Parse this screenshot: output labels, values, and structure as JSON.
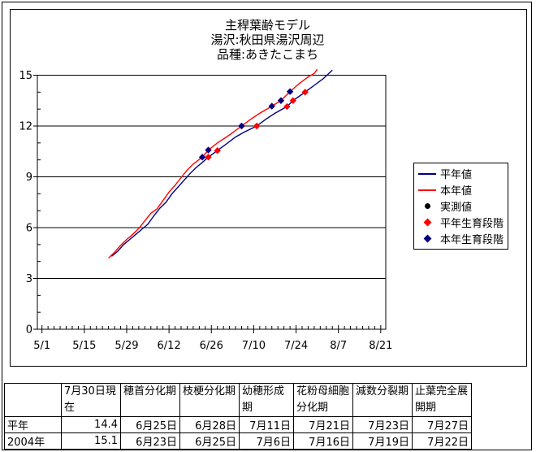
{
  "title": {
    "line1": "主稈葉齢モデル",
    "line2": "湯沢:秋田県湯沢周辺",
    "line3": "品種:あきたこまち"
  },
  "legend": {
    "items": [
      {
        "label": "平年値",
        "type": "line",
        "color": "#000080"
      },
      {
        "label": "本年値",
        "type": "line",
        "color": "#ff0000"
      },
      {
        "label": "実測値",
        "type": "circle",
        "color": "#000000"
      },
      {
        "label": "平年生育段階",
        "type": "diamond",
        "color": "#ff0000"
      },
      {
        "label": "本年生育段階",
        "type": "diamond",
        "color": "#000080"
      }
    ]
  },
  "chart_data": {
    "type": "line",
    "title": "主稈葉齢モデル 湯沢:秋田県湯沢周辺 品種:あきたこまち",
    "xlabel": "",
    "ylabel": "",
    "ylim": [
      0,
      15
    ],
    "y_major_ticks": [
      0,
      3,
      6,
      9,
      12,
      15
    ],
    "y_minor_step": 1,
    "x_tick_labels": [
      "5/1",
      "5/15",
      "5/29",
      "6/12",
      "6/26",
      "7/10",
      "7/24",
      "8/7",
      "8/21"
    ],
    "x_major_step_days": 14,
    "x_minor_step_days": 2,
    "grid": "horizontal-major",
    "legend_position": "right",
    "series": [
      {
        "name": "平年値",
        "color": "#000080",
        "points": [
          [
            "5/24",
            4.3
          ],
          [
            "5/26",
            4.6
          ],
          [
            "5/28",
            5.0
          ],
          [
            "5/30",
            5.3
          ],
          [
            "6/1",
            5.6
          ],
          [
            "6/3",
            5.9
          ],
          [
            "6/5",
            6.2
          ],
          [
            "6/7",
            6.7
          ],
          [
            "6/9",
            7.15
          ],
          [
            "6/11",
            7.5
          ],
          [
            "6/13",
            8.0
          ],
          [
            "6/15",
            8.4
          ],
          [
            "6/17",
            8.8
          ],
          [
            "6/19",
            9.2
          ],
          [
            "6/21",
            9.55
          ],
          [
            "6/23",
            9.85
          ],
          [
            "6/25",
            10.16
          ],
          [
            "6/28",
            10.55
          ],
          [
            "7/1",
            10.95
          ],
          [
            "7/4",
            11.35
          ],
          [
            "7/7",
            11.65
          ],
          [
            "7/11",
            12.0
          ],
          [
            "7/14",
            12.4
          ],
          [
            "7/17",
            12.75
          ],
          [
            "7/21",
            13.15
          ],
          [
            "7/23",
            13.5
          ],
          [
            "7/25",
            13.75
          ],
          [
            "7/27",
            14.0
          ],
          [
            "7/30",
            14.4
          ],
          [
            "8/2",
            14.8
          ],
          [
            "8/5",
            15.3
          ]
        ]
      },
      {
        "name": "本年値",
        "color": "#ff0000",
        "points": [
          [
            "5/23",
            4.2
          ],
          [
            "5/25",
            4.55
          ],
          [
            "5/27",
            4.95
          ],
          [
            "5/29",
            5.3
          ],
          [
            "5/31",
            5.6
          ],
          [
            "6/2",
            5.95
          ],
          [
            "6/4",
            6.4
          ],
          [
            "6/6",
            6.85
          ],
          [
            "6/8",
            7.1
          ],
          [
            "6/10",
            7.6
          ],
          [
            "6/12",
            8.1
          ],
          [
            "6/14",
            8.5
          ],
          [
            "6/16",
            8.95
          ],
          [
            "6/18",
            9.4
          ],
          [
            "6/20",
            9.75
          ],
          [
            "6/23",
            10.16
          ],
          [
            "6/25",
            10.58
          ],
          [
            "6/28",
            11.0
          ],
          [
            "7/1",
            11.35
          ],
          [
            "7/3",
            11.6
          ],
          [
            "7/6",
            12.0
          ],
          [
            "7/9",
            12.4
          ],
          [
            "7/12",
            12.75
          ],
          [
            "7/16",
            13.17
          ],
          [
            "7/19",
            13.5
          ],
          [
            "7/22",
            14.03
          ],
          [
            "7/25",
            14.5
          ],
          [
            "7/28",
            14.9
          ],
          [
            "7/30",
            15.1
          ],
          [
            "7/31",
            15.35
          ]
        ]
      }
    ],
    "markers": [
      {
        "name": "実測値",
        "color": "#000000",
        "shape": "circle",
        "points": []
      },
      {
        "name": "平年生育段階",
        "color": "#ff0000",
        "shape": "diamond",
        "points": [
          [
            "6/25",
            10.16
          ],
          [
            "6/28",
            10.55
          ],
          [
            "7/11",
            12.0
          ],
          [
            "7/21",
            13.15
          ],
          [
            "7/23",
            13.5
          ],
          [
            "7/27",
            14.0
          ]
        ]
      },
      {
        "name": "本年生育段階",
        "color": "#000080",
        "shape": "diamond",
        "points": [
          [
            "6/23",
            10.16
          ],
          [
            "6/25",
            10.58
          ],
          [
            "7/6",
            12.0
          ],
          [
            "7/16",
            13.17
          ],
          [
            "7/19",
            13.5
          ],
          [
            "7/22",
            14.03
          ]
        ]
      }
    ]
  },
  "table": {
    "headers": [
      "",
      "7月30日現在",
      "穂首分化期",
      "枝梗分化期",
      "幼穂形成期",
      "花粉母細胞分化期",
      "減数分裂期",
      "止葉完全展開期"
    ],
    "rows": [
      {
        "label": "平年",
        "values": [
          "14.4",
          "6月25日",
          "6月28日",
          "7月11日",
          "7月21日",
          "7月23日",
          "7月27日"
        ]
      },
      {
        "label": "2004年",
        "values": [
          "15.1",
          "6月23日",
          "6月25日",
          "7月6日",
          "7月16日",
          "7月19日",
          "7月22日"
        ]
      }
    ]
  }
}
